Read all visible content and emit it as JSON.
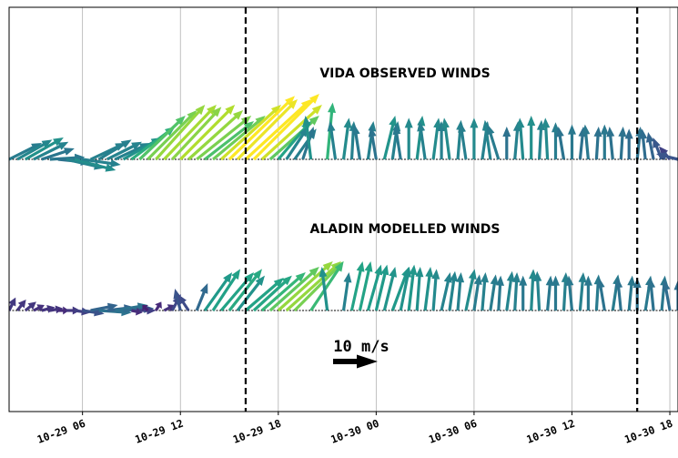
{
  "chart_data": {
    "type": "quiver",
    "x_unit": "hours since 10-29 00",
    "xlim": [
      1.5,
      42.5
    ],
    "x_ticks": [
      {
        "x": 6,
        "label": "10-29 06"
      },
      {
        "x": 12,
        "label": "10-29 12"
      },
      {
        "x": 18,
        "label": "10-29 18"
      },
      {
        "x": 24,
        "label": "10-30 00"
      },
      {
        "x": 30,
        "label": "10-30 06"
      },
      {
        "x": 36,
        "label": "10-30 12"
      },
      {
        "x": 42,
        "label": "10-30 18"
      }
    ],
    "vertical_dashed_lines_x": [
      16,
      40
    ],
    "grid": "vertical",
    "colormap": "viridis",
    "key": {
      "label": "10 m/s",
      "speed": 10
    },
    "series": [
      {
        "name": "VIDA OBSERVED WINDS",
        "winds": [
          {
            "t": 1.5,
            "u": 3.0,
            "v": 1.5
          },
          {
            "t": 2.0,
            "u": 3.2,
            "v": 1.8
          },
          {
            "t": 2.5,
            "u": 3.5,
            "v": 2.0
          },
          {
            "t": 3.0,
            "u": 3.2,
            "v": 1.6
          },
          {
            "t": 3.5,
            "u": 3.0,
            "v": 1.0
          },
          {
            "t": 4.0,
            "u": 3.2,
            "v": 0.2
          },
          {
            "t": 4.5,
            "u": 3.0,
            "v": -0.3
          },
          {
            "t": 5.0,
            "u": 3.5,
            "v": -0.8
          },
          {
            "t": 5.5,
            "u": 3.8,
            "v": -1.0
          },
          {
            "t": 6.0,
            "u": 3.5,
            "v": -0.5
          },
          {
            "t": 6.5,
            "u": 3.2,
            "v": 1.5
          },
          {
            "t": 7.0,
            "u": 3.0,
            "v": 1.8
          },
          {
            "t": 7.5,
            "u": 3.2,
            "v": 1.6
          },
          {
            "t": 8.0,
            "u": 3.2,
            "v": 1.5
          },
          {
            "t": 8.5,
            "u": 3.5,
            "v": 2.0
          },
          {
            "t": 9.0,
            "u": 4.0,
            "v": 3.0
          },
          {
            "t": 9.5,
            "u": 4.2,
            "v": 4.0
          },
          {
            "t": 10.0,
            "u": 4.5,
            "v": 4.5
          },
          {
            "t": 10.5,
            "u": 4.5,
            "v": 5.0
          },
          {
            "t": 11.0,
            "u": 4.8,
            "v": 5.0
          },
          {
            "t": 11.5,
            "u": 4.5,
            "v": 4.8
          },
          {
            "t": 12.0,
            "u": 5.0,
            "v": 5.0
          },
          {
            "t": 12.5,
            "u": 5.0,
            "v": 4.5
          },
          {
            "t": 13.0,
            "u": 5.0,
            "v": 4.0
          },
          {
            "t": 13.5,
            "u": 4.5,
            "v": 3.5
          },
          {
            "t": 14.0,
            "u": 4.8,
            "v": 4.0
          },
          {
            "t": 14.5,
            "u": 5.5,
            "v": 5.0
          },
          {
            "t": 15.0,
            "u": 6.0,
            "v": 5.8
          },
          {
            "t": 15.5,
            "u": 5.5,
            "v": 5.5
          },
          {
            "t": 16.0,
            "u": 6.0,
            "v": 5.5
          },
          {
            "t": 16.5,
            "u": 6.0,
            "v": 6.0
          },
          {
            "t": 17.0,
            "u": 5.5,
            "v": 5.0
          },
          {
            "t": 17.5,
            "u": 4.5,
            "v": 4.0
          },
          {
            "t": 18.0,
            "u": 3.0,
            "v": 3.5
          },
          {
            "t": 18.5,
            "u": 2.0,
            "v": 3.0
          },
          {
            "t": 19.0,
            "u": 2.0,
            "v": 2.8
          },
          {
            "t": 19.5,
            "u": 1.0,
            "v": 3.0
          },
          {
            "t": 20.0,
            "u": -0.5,
            "v": 4.0
          },
          {
            "t": 21.0,
            "u": 0.5,
            "v": 5.2
          },
          {
            "t": 21.5,
            "u": -0.5,
            "v": 3.5
          },
          {
            "t": 22.0,
            "u": 0.5,
            "v": 3.8
          },
          {
            "t": 22.5,
            "u": 0.2,
            "v": 3.5
          },
          {
            "t": 23.0,
            "u": -0.5,
            "v": 3.2
          },
          {
            "t": 23.5,
            "u": 0.5,
            "v": 3.5
          },
          {
            "t": 24.0,
            "u": -0.5,
            "v": 3.0
          },
          {
            "t": 24.5,
            "u": 1.0,
            "v": 4.0
          },
          {
            "t": 25.0,
            "u": 0.5,
            "v": 3.5
          },
          {
            "t": 25.5,
            "u": -0.5,
            "v": 3.2
          },
          {
            "t": 26.0,
            "u": 0.0,
            "v": 3.8
          },
          {
            "t": 26.5,
            "u": 0.5,
            "v": 4.0
          },
          {
            "t": 27.0,
            "u": -0.5,
            "v": 3.5
          },
          {
            "t": 27.5,
            "u": 0.5,
            "v": 3.8
          },
          {
            "t": 28.0,
            "u": 0.0,
            "v": 3.5
          },
          {
            "t": 28.5,
            "u": -0.5,
            "v": 3.8
          },
          {
            "t": 29.0,
            "u": 0.3,
            "v": 3.6
          },
          {
            "t": 29.5,
            "u": -0.5,
            "v": 3.4
          },
          {
            "t": 30.0,
            "u": 0.0,
            "v": 3.8
          },
          {
            "t": 30.5,
            "u": 0.5,
            "v": 3.5
          },
          {
            "t": 31.0,
            "u": -0.5,
            "v": 3.6
          },
          {
            "t": 31.5,
            "u": -1.0,
            "v": 3.2
          },
          {
            "t": 32.0,
            "u": 0.0,
            "v": 3.0
          },
          {
            "t": 32.5,
            "u": 0.3,
            "v": 3.5
          },
          {
            "t": 33.0,
            "u": -0.3,
            "v": 3.8
          },
          {
            "t": 33.5,
            "u": 0.0,
            "v": 4.0
          },
          {
            "t": 34.0,
            "u": 0.2,
            "v": 3.6
          },
          {
            "t": 34.5,
            "u": -0.2,
            "v": 3.8
          },
          {
            "t": 35.0,
            "u": 0.0,
            "v": 3.4
          },
          {
            "t": 35.5,
            "u": -0.5,
            "v": 3.0
          },
          {
            "t": 36.0,
            "u": 0.0,
            "v": 3.2
          },
          {
            "t": 36.5,
            "u": 0.3,
            "v": 3.0
          },
          {
            "t": 37.0,
            "u": -0.3,
            "v": 3.2
          },
          {
            "t": 37.5,
            "u": 0.2,
            "v": 3.0
          },
          {
            "t": 38.0,
            "u": 0.0,
            "v": 3.2
          },
          {
            "t": 38.5,
            "u": -0.3,
            "v": 3.0
          },
          {
            "t": 39.0,
            "u": 0.2,
            "v": 3.0
          },
          {
            "t": 39.5,
            "u": 0.0,
            "v": 2.8
          },
          {
            "t": 40.0,
            "u": 0.3,
            "v": 3.0
          },
          {
            "t": 40.5,
            "u": -0.3,
            "v": 2.8
          },
          {
            "t": 41.0,
            "u": -0.5,
            "v": 2.5
          },
          {
            "t": 41.5,
            "u": -0.8,
            "v": 2.0
          },
          {
            "t": 42.0,
            "u": -1.0,
            "v": 1.2
          },
          {
            "t": 42.5,
            "u": -2.0,
            "v": 0.5
          },
          {
            "t": 43.0,
            "u": 0.3,
            "v": -1.8
          },
          {
            "t": 43.5,
            "u": 0.5,
            "v": -1.2
          },
          {
            "t": 44.0,
            "u": 0.8,
            "v": -1.0
          },
          {
            "t": 44.5,
            "u": 1.0,
            "v": -0.6
          },
          {
            "t": 45.0,
            "u": 1.5,
            "v": 0.3
          },
          {
            "t": 45.5,
            "u": 1.2,
            "v": 0.1
          }
        ]
      },
      {
        "name": "ALADIN MODELLED WINDS",
        "winds": [
          {
            "t": 1.5,
            "u": 0.6,
            "v": 1.2
          },
          {
            "t": 2.0,
            "u": 0.8,
            "v": 1.0
          },
          {
            "t": 2.5,
            "u": 1.0,
            "v": 0.8
          },
          {
            "t": 3.0,
            "u": 1.0,
            "v": 0.5
          },
          {
            "t": 3.5,
            "u": 1.2,
            "v": 0.3
          },
          {
            "t": 4.0,
            "u": 1.2,
            "v": 0.2
          },
          {
            "t": 4.5,
            "u": 1.0,
            "v": 0.0
          },
          {
            "t": 5.0,
            "u": 1.3,
            "v": 0.0
          },
          {
            "t": 5.5,
            "u": 1.5,
            "v": -0.2
          },
          {
            "t": 6.0,
            "u": 2.0,
            "v": -0.3
          },
          {
            "t": 6.5,
            "u": 2.5,
            "v": 0.5
          },
          {
            "t": 7.0,
            "u": 3.0,
            "v": -0.2
          },
          {
            "t": 7.5,
            "u": 2.5,
            "v": 0.3
          },
          {
            "t": 8.0,
            "u": 3.0,
            "v": 0.5
          },
          {
            "t": 8.5,
            "u": 2.8,
            "v": 0.2
          },
          {
            "t": 9.0,
            "u": 1.0,
            "v": -0.2
          },
          {
            "t": 9.5,
            "u": 1.5,
            "v": 0.0
          },
          {
            "t": 10.0,
            "u": -0.5,
            "v": 0.5
          },
          {
            "t": 10.5,
            "u": 0.5,
            "v": 0.8
          },
          {
            "t": 11.0,
            "u": 1.0,
            "v": 0.5
          },
          {
            "t": 11.5,
            "u": 0.8,
            "v": 1.5
          },
          {
            "t": 12.0,
            "u": -0.5,
            "v": 2.0
          },
          {
            "t": 12.5,
            "u": -1.0,
            "v": 1.5
          },
          {
            "t": 13.0,
            "u": 1.0,
            "v": 2.5
          },
          {
            "t": 13.5,
            "u": 2.5,
            "v": 3.5
          },
          {
            "t": 14.0,
            "u": 2.5,
            "v": 3.8
          },
          {
            "t": 14.5,
            "u": 3.0,
            "v": 3.5
          },
          {
            "t": 15.0,
            "u": 3.0,
            "v": 3.8
          },
          {
            "t": 15.5,
            "u": 2.5,
            "v": 3.2
          },
          {
            "t": 16.0,
            "u": 3.5,
            "v": 3.0
          },
          {
            "t": 16.5,
            "u": 3.5,
            "v": 3.2
          },
          {
            "t": 17.0,
            "u": 4.0,
            "v": 3.5
          },
          {
            "t": 17.5,
            "u": 4.5,
            "v": 4.0
          },
          {
            "t": 18.0,
            "u": 5.0,
            "v": 4.5
          },
          {
            "t": 18.5,
            "u": 5.0,
            "v": 4.5
          },
          {
            "t": 19.0,
            "u": 4.5,
            "v": 4.5
          },
          {
            "t": 20.0,
            "u": 3.0,
            "v": 4.5
          },
          {
            "t": 21.0,
            "u": -0.5,
            "v": 4.0
          },
          {
            "t": 22.0,
            "u": 0.5,
            "v": 3.5
          },
          {
            "t": 22.5,
            "u": 1.0,
            "v": 4.5
          },
          {
            "t": 23.0,
            "u": 1.0,
            "v": 4.5
          },
          {
            "t": 23.5,
            "u": 1.2,
            "v": 4.2
          },
          {
            "t": 24.0,
            "u": 1.0,
            "v": 4.2
          },
          {
            "t": 24.5,
            "u": 1.0,
            "v": 4.0
          },
          {
            "t": 25.0,
            "u": 1.5,
            "v": 4.0
          },
          {
            "t": 25.5,
            "u": 0.8,
            "v": 4.0
          },
          {
            "t": 26.0,
            "u": 0.5,
            "v": 4.2
          },
          {
            "t": 26.5,
            "u": 0.3,
            "v": 4.0
          },
          {
            "t": 27.0,
            "u": 0.5,
            "v": 4.0
          },
          {
            "t": 27.5,
            "u": 0.3,
            "v": 3.8
          },
          {
            "t": 28.0,
            "u": 0.8,
            "v": 3.5
          },
          {
            "t": 28.5,
            "u": 0.5,
            "v": 3.6
          },
          {
            "t": 29.0,
            "u": 0.3,
            "v": 3.5
          },
          {
            "t": 29.5,
            "u": 0.8,
            "v": 3.8
          },
          {
            "t": 30.0,
            "u": 0.5,
            "v": 3.3
          },
          {
            "t": 30.5,
            "u": 0.3,
            "v": 3.5
          },
          {
            "t": 31.0,
            "u": 0.5,
            "v": 3.3
          },
          {
            "t": 31.5,
            "u": 0.2,
            "v": 3.2
          },
          {
            "t": 32.0,
            "u": 0.5,
            "v": 3.6
          },
          {
            "t": 32.5,
            "u": 0.2,
            "v": 3.5
          },
          {
            "t": 33.0,
            "u": 0.0,
            "v": 3.2
          },
          {
            "t": 33.5,
            "u": 0.2,
            "v": 3.8
          },
          {
            "t": 34.0,
            "u": -0.2,
            "v": 3.6
          },
          {
            "t": 34.5,
            "u": 0.3,
            "v": 3.2
          },
          {
            "t": 35.0,
            "u": 0.0,
            "v": 3.2
          },
          {
            "t": 35.5,
            "u": 0.2,
            "v": 3.5
          },
          {
            "t": 36.0,
            "u": -0.3,
            "v": 3.2
          },
          {
            "t": 36.5,
            "u": 0.3,
            "v": 3.5
          },
          {
            "t": 37.0,
            "u": 0.0,
            "v": 3.2
          },
          {
            "t": 37.5,
            "u": 0.2,
            "v": 3.3
          },
          {
            "t": 38.0,
            "u": -0.5,
            "v": 3.0
          },
          {
            "t": 38.5,
            "u": 0.5,
            "v": 3.3
          },
          {
            "t": 39.0,
            "u": -0.3,
            "v": 3.0
          },
          {
            "t": 39.5,
            "u": 0.3,
            "v": 3.2
          },
          {
            "t": 40.0,
            "u": 0.0,
            "v": 3.0
          },
          {
            "t": 40.5,
            "u": 0.5,
            "v": 3.2
          },
          {
            "t": 41.0,
            "u": -0.3,
            "v": 3.0
          },
          {
            "t": 41.5,
            "u": 0.3,
            "v": 3.2
          },
          {
            "t": 42.0,
            "u": -0.5,
            "v": 2.8
          },
          {
            "t": 42.5,
            "u": 0.0,
            "v": 2.8
          },
          {
            "t": 43.0,
            "u": 0.3,
            "v": 2.2
          },
          {
            "t": 43.5,
            "u": -0.5,
            "v": 2.5
          },
          {
            "t": 44.0,
            "u": -0.2,
            "v": 2.0
          },
          {
            "t": 44.5,
            "u": -0.5,
            "v": 2.2
          },
          {
            "t": 45.0,
            "u": -1.0,
            "v": 1.5
          },
          {
            "t": 45.5,
            "u": -2.0,
            "v": 1.5
          }
        ]
      }
    ]
  }
}
